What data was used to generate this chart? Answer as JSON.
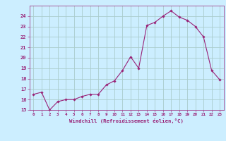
{
  "hours": [
    0,
    1,
    2,
    3,
    4,
    5,
    6,
    7,
    8,
    9,
    10,
    11,
    12,
    13,
    14,
    15,
    16,
    17,
    18,
    19,
    20,
    21,
    22,
    23
  ],
  "values": [
    16.5,
    16.7,
    15.0,
    15.8,
    16.0,
    16.0,
    16.3,
    16.5,
    16.5,
    17.4,
    17.8,
    18.8,
    20.1,
    19.0,
    23.1,
    23.4,
    24.0,
    24.5,
    23.9,
    23.6,
    23.0,
    22.0,
    18.8,
    17.9
  ],
  "line_color": "#992277",
  "marker_color": "#992277",
  "bg_color": "#cceeff",
  "grid_color": "#aacccc",
  "axis_color": "#992277",
  "tick_color": "#992277",
  "xlabel": "Windchill (Refroidissement éolien,°C)",
  "ylim": [
    15,
    25
  ],
  "xlim": [
    -0.5,
    23.5
  ],
  "yticks": [
    15,
    16,
    17,
    18,
    19,
    20,
    21,
    22,
    23,
    24
  ],
  "xticks": [
    0,
    1,
    2,
    3,
    4,
    5,
    6,
    7,
    8,
    9,
    10,
    11,
    12,
    13,
    14,
    15,
    16,
    17,
    18,
    19,
    20,
    21,
    22,
    23
  ]
}
